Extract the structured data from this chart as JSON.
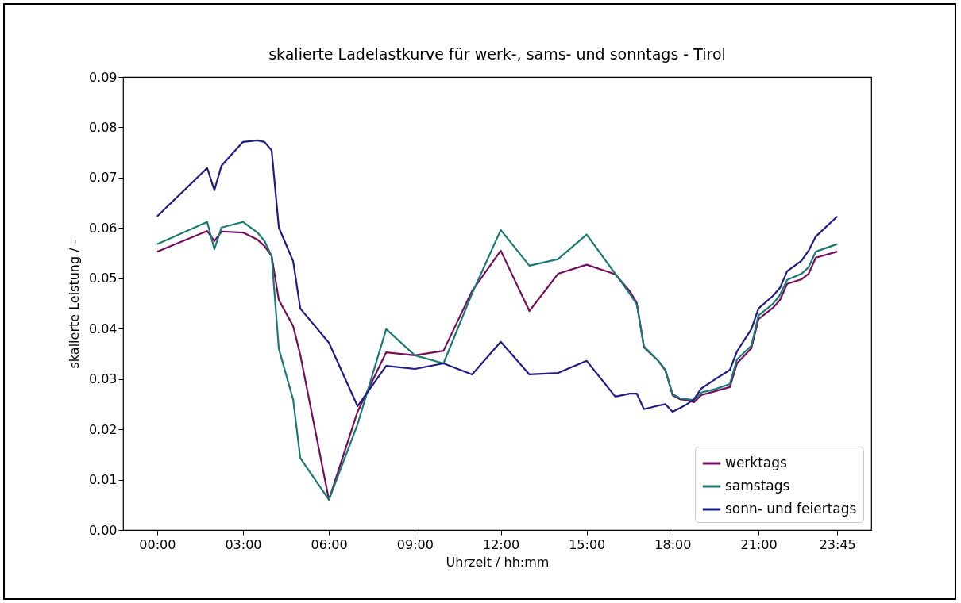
{
  "chart_data": {
    "type": "line",
    "title": "skalierte Ladelastkurve für werk-, sams- und sonntags - Tirol",
    "xlabel": "Uhrzeit / hh:mm",
    "ylabel": "skalierte Leistung / -",
    "x": [
      0,
      1.75,
      2,
      2.25,
      3,
      3.5,
      3.75,
      4,
      4.25,
      4.75,
      5,
      6,
      7,
      8,
      9,
      10,
      11,
      12,
      13,
      14,
      15,
      16,
      16.5,
      16.75,
      17,
      17.5,
      17.75,
      18,
      18.25,
      18.5,
      18.75,
      19,
      19.5,
      20,
      20.25,
      20.75,
      21,
      21.5,
      21.75,
      22,
      22.5,
      22.75,
      23,
      23.75
    ],
    "series": [
      {
        "name": "werktags",
        "color": "#750d5e",
        "values": [
          0.0553,
          0.0594,
          0.0574,
          0.0593,
          0.0591,
          0.0577,
          0.0564,
          0.0544,
          0.0457,
          0.0405,
          0.0348,
          0.006,
          0.0235,
          0.0353,
          0.0347,
          0.0356,
          0.0475,
          0.0555,
          0.0435,
          0.0509,
          0.0527,
          0.0508,
          0.0475,
          0.0451,
          0.0363,
          0.0336,
          0.0317,
          0.0268,
          0.026,
          0.0258,
          0.0254,
          0.0268,
          0.0276,
          0.0284,
          0.0331,
          0.0361,
          0.0419,
          0.0441,
          0.0457,
          0.0489,
          0.0498,
          0.0509,
          0.0541,
          0.0553
        ]
      },
      {
        "name": "samstags",
        "color": "#1b7a73",
        "values": [
          0.0568,
          0.0612,
          0.0558,
          0.0601,
          0.0612,
          0.0591,
          0.0574,
          0.0544,
          0.036,
          0.0259,
          0.0143,
          0.006,
          0.021,
          0.0399,
          0.0347,
          0.0331,
          0.047,
          0.0596,
          0.0525,
          0.0538,
          0.0587,
          0.0509,
          0.047,
          0.0448,
          0.0365,
          0.0336,
          0.0318,
          0.027,
          0.0262,
          0.026,
          0.0258,
          0.0273,
          0.028,
          0.029,
          0.0339,
          0.0366,
          0.0426,
          0.0449,
          0.0467,
          0.0497,
          0.0509,
          0.0522,
          0.0553,
          0.0568
        ]
      },
      {
        "name": "sonn- und feiertags",
        "color": "#1f1d85",
        "values": [
          0.0623,
          0.0719,
          0.0675,
          0.0724,
          0.0771,
          0.0774,
          0.0771,
          0.0754,
          0.0601,
          0.0534,
          0.044,
          0.0372,
          0.0246,
          0.0326,
          0.032,
          0.0331,
          0.0309,
          0.0374,
          0.0309,
          0.0312,
          0.0336,
          0.0265,
          0.0271,
          0.0271,
          0.024,
          0.0247,
          0.025,
          0.0235,
          0.0242,
          0.025,
          0.026,
          0.0281,
          0.03,
          0.0318,
          0.0355,
          0.0399,
          0.044,
          0.0465,
          0.0481,
          0.0514,
          0.0535,
          0.0555,
          0.0583,
          0.0623
        ]
      }
    ],
    "xlim": [
      -1.1875,
      24.9375
    ],
    "xticks": [
      {
        "value": 0,
        "label": "00:00"
      },
      {
        "value": 3,
        "label": "03:00"
      },
      {
        "value": 6,
        "label": "06:00"
      },
      {
        "value": 9,
        "label": "09:00"
      },
      {
        "value": 12,
        "label": "12:00"
      },
      {
        "value": 15,
        "label": "15:00"
      },
      {
        "value": 18,
        "label": "18:00"
      },
      {
        "value": 21,
        "label": "21:00"
      },
      {
        "value": 23.75,
        "label": "23:45"
      }
    ],
    "ylim": [
      0,
      0.09
    ],
    "yticks": [
      {
        "value": 0,
        "label": "0.00"
      },
      0.01,
      0.02,
      0.03,
      0.04,
      0.05,
      0.06,
      0.07,
      0.08,
      0.09
    ],
    "legend": "bottom right",
    "grid": false,
    "marker": "none",
    "line_style": "solid"
  }
}
